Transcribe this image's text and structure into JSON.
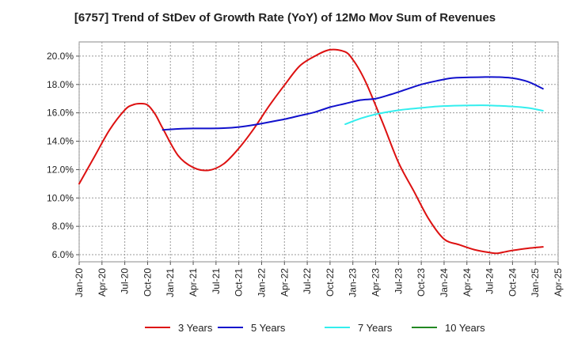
{
  "chart_data": {
    "type": "line",
    "title": "[6757]  Trend of StDev of Growth Rate (YoY) of 12Mo Mov Sum of Revenues",
    "xlabel": "",
    "ylabel": "",
    "ylim": [
      5.5,
      21.0
    ],
    "y_ticks": [
      6,
      8,
      10,
      12,
      14,
      16,
      18,
      20
    ],
    "y_tick_labels": [
      "6.0%",
      "8.0%",
      "10.0%",
      "12.0%",
      "14.0%",
      "16.0%",
      "18.0%",
      "20.0%"
    ],
    "x_ticks": [
      0,
      3,
      6,
      9,
      12,
      15,
      18,
      21,
      24,
      27,
      30,
      33,
      36,
      39,
      42,
      45,
      48,
      51,
      54,
      57,
      60,
      63
    ],
    "x_tick_labels": [
      "Jan-20",
      "Apr-20",
      "Jul-20",
      "Oct-20",
      "Jan-21",
      "Apr-21",
      "Jul-21",
      "Oct-21",
      "Jan-22",
      "Apr-22",
      "Jul-22",
      "Oct-22",
      "Jan-23",
      "Apr-23",
      "Jul-23",
      "Oct-23",
      "Jan-24",
      "Apr-24",
      "Jul-24",
      "Oct-24",
      "Jan-25",
      "Apr-25"
    ],
    "x_range": [
      0,
      63
    ],
    "grid": true,
    "legend_position": "bottom",
    "series": [
      {
        "name": "3 Years",
        "color": "#dd1111",
        "x": [
          0,
          2,
          4,
          6,
          7,
          8,
          9,
          10,
          11,
          13,
          15,
          17,
          19,
          21,
          23,
          25,
          27,
          29,
          31,
          33,
          35,
          36,
          37,
          38,
          40,
          42,
          44,
          46,
          48,
          50,
          52,
          54,
          55,
          56,
          57,
          59,
          61
        ],
        "y": [
          11.0,
          12.9,
          14.8,
          16.2,
          16.55,
          16.65,
          16.55,
          15.9,
          14.9,
          13.0,
          12.15,
          11.95,
          12.4,
          13.5,
          14.9,
          16.5,
          17.95,
          19.3,
          20.0,
          20.45,
          20.3,
          19.75,
          18.9,
          17.8,
          15.2,
          12.5,
          10.5,
          8.5,
          7.1,
          6.7,
          6.35,
          6.15,
          6.1,
          6.2,
          6.3,
          6.45,
          6.55
        ]
      },
      {
        "name": "5 Years",
        "color": "#1111cc",
        "x": [
          11,
          13,
          15,
          17,
          19,
          21,
          23,
          25,
          27,
          29,
          31,
          33,
          35,
          37,
          39,
          41,
          43,
          45,
          47,
          49,
          51,
          53,
          55,
          57,
          59,
          61
        ],
        "y": [
          14.8,
          14.87,
          14.9,
          14.9,
          14.92,
          15.0,
          15.15,
          15.35,
          15.55,
          15.8,
          16.05,
          16.4,
          16.65,
          16.9,
          17.0,
          17.3,
          17.65,
          18.0,
          18.25,
          18.45,
          18.5,
          18.52,
          18.52,
          18.45,
          18.2,
          17.7
        ]
      },
      {
        "name": "7 Years",
        "color": "#33eeee",
        "x": [
          35,
          37,
          39,
          41,
          43,
          45,
          47,
          49,
          51,
          53,
          55,
          57,
          59,
          61
        ],
        "y": [
          15.2,
          15.6,
          15.9,
          16.1,
          16.25,
          16.35,
          16.45,
          16.5,
          16.52,
          16.53,
          16.5,
          16.45,
          16.35,
          16.15
        ]
      },
      {
        "name": "10 Years",
        "color": "#228822",
        "x": [],
        "y": []
      }
    ]
  }
}
